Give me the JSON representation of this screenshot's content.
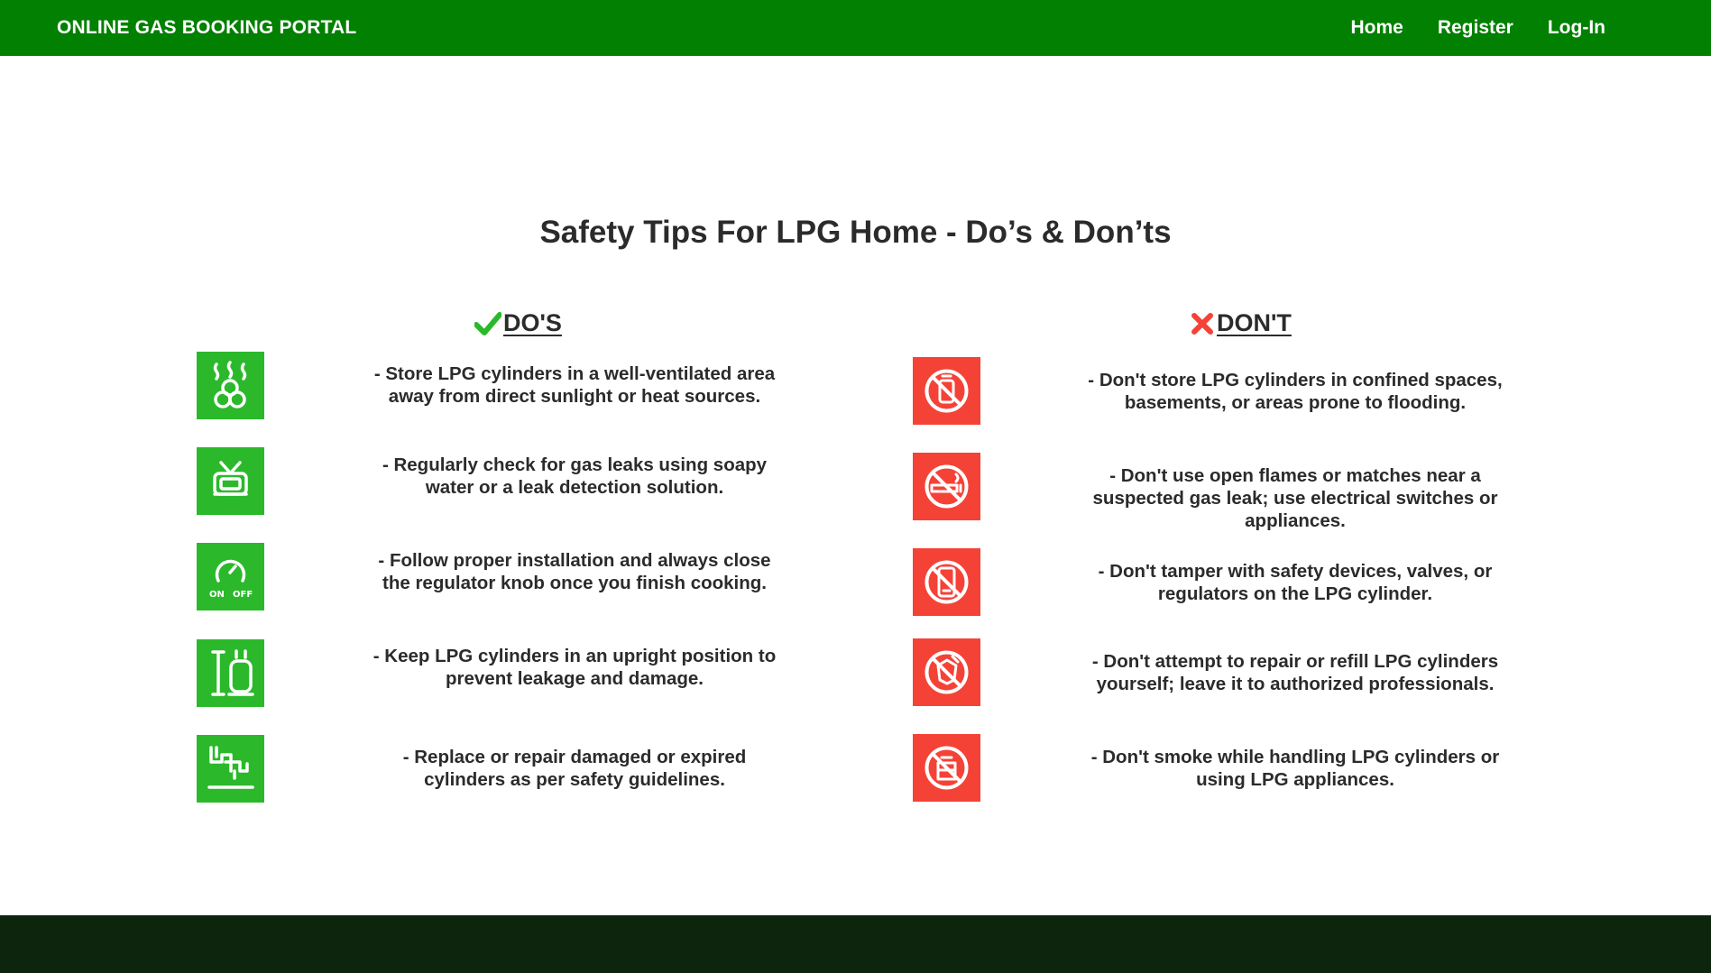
{
  "navbar": {
    "brand": "ONLINE GAS BOOKING PORTAL",
    "links": [
      "Home",
      "Register",
      "Log-In"
    ]
  },
  "page": {
    "title": "Safety Tips For LPG Home - Do’s & Don’ts"
  },
  "dos": {
    "heading": "DO'S",
    "icon_color": "#2bb92b",
    "items": [
      {
        "icon": "ventilation-icon",
        "text": "- Store LPG cylinders in a well-ventilated area away from direct sunlight or heat sources."
      },
      {
        "icon": "leak-check-icon",
        "text": "- Regularly check for gas leaks using soapy water or a leak detection solution."
      },
      {
        "icon": "regulator-knob-icon",
        "text": "- Follow proper installation and always close the regulator knob once you finish cooking."
      },
      {
        "icon": "upright-cylinder-icon",
        "text": "- Keep LPG cylinders in an upright position to prevent leakage and damage."
      },
      {
        "icon": "pipe-repair-icon",
        "text": "- Replace or repair damaged or expired cylinders as per safety guidelines."
      }
    ]
  },
  "donts": {
    "heading": "DON'T",
    "icon_color": "#f54237",
    "items": [
      {
        "icon": "no-confined-storage-icon",
        "text": "- Don't store LPG cylinders in confined spaces, basements, or areas prone to flooding."
      },
      {
        "icon": "no-smoking-icon",
        "text": "- Don't use open flames or matches near a suspected gas leak; use electrical switches or appliances."
      },
      {
        "icon": "no-phone-icon",
        "text": "- Don't tamper with safety devices, valves, or regulators on the LPG cylinder."
      },
      {
        "icon": "no-repair-icon",
        "text": "- Don't attempt to repair or refill LPG cylinders yourself; leave it to authorized professionals."
      },
      {
        "icon": "no-handling-icon",
        "text": "- Don't smoke while handling LPG cylinders or using LPG appliances."
      }
    ]
  },
  "colors": {
    "navbar": "#018001",
    "footer": "#0e250d",
    "check": "#2bb92b",
    "cross": "#f54237"
  }
}
